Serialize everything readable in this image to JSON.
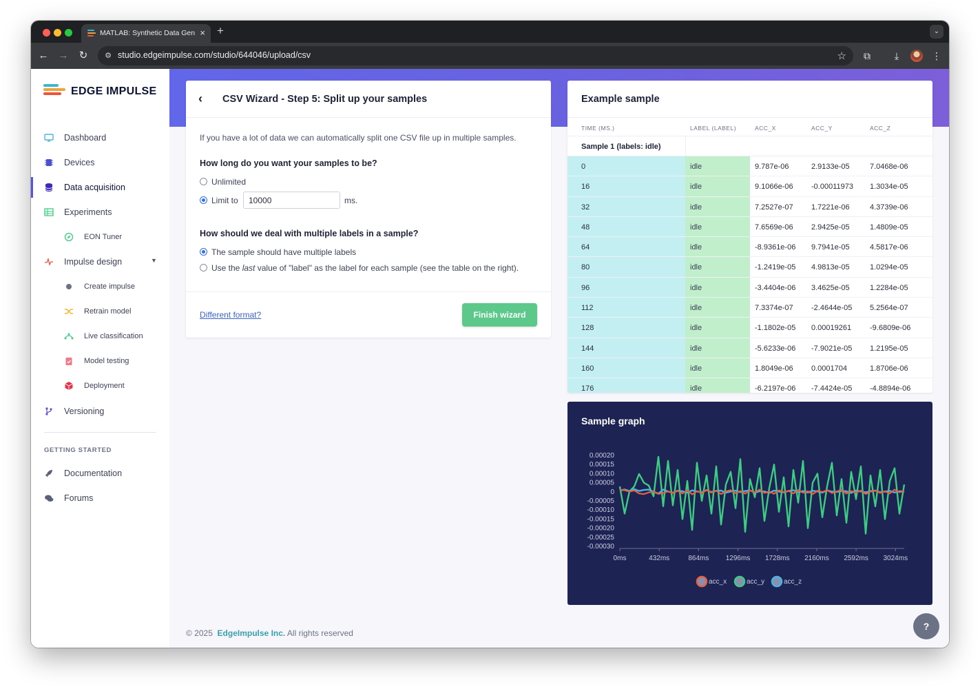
{
  "browser": {
    "tab_title": "MATLAB: Synthetic Data Gen",
    "url": "studio.edgeimpulse.com/studio/644046/upload/csv"
  },
  "colors": {
    "accent": "#5a55d6",
    "banner": "#6266e8",
    "finish_button": "#5cc98a",
    "time_column": "#c3eef2",
    "label_column": "#c1efcc",
    "graph_background": "#1d2453",
    "acc_x": "#e8613c",
    "acc_y": "#3ecb82",
    "acc_z": "#49b3e6"
  },
  "logo": {
    "text": "EDGE IMPULSE"
  },
  "sidebar": {
    "items": [
      {
        "label": "Dashboard",
        "icon": "monitor-icon"
      },
      {
        "label": "Devices",
        "icon": "chip-icon"
      },
      {
        "label": "Data acquisition",
        "icon": "database-icon",
        "active": true
      },
      {
        "label": "Experiments",
        "icon": "table-icon"
      },
      {
        "label": "EON Tuner",
        "icon": "compass-icon"
      },
      {
        "label": "Impulse design",
        "icon": "pulse-icon"
      },
      {
        "label": "Create impulse",
        "icon": "dot-icon"
      },
      {
        "label": "Retrain model",
        "icon": "shuffle-icon"
      },
      {
        "label": "Live classification",
        "icon": "live-icon"
      },
      {
        "label": "Model testing",
        "icon": "clipboard-check-icon"
      },
      {
        "label": "Deployment",
        "icon": "cube-icon"
      },
      {
        "label": "Versioning",
        "icon": "branch-icon"
      }
    ],
    "section_heading": "GETTING STARTED",
    "getting_started": [
      {
        "label": "Documentation",
        "icon": "rocket-icon"
      },
      {
        "label": "Forums",
        "icon": "chat-icon"
      }
    ]
  },
  "wizard": {
    "title": "CSV Wizard - Step 5: Split up your samples",
    "intro": "If you have a lot of data we can automatically split one CSV file up in multiple samples.",
    "q1": "How long do you want your samples to be?",
    "opt_unlimited": "Unlimited",
    "opt_limit": "Limit to",
    "limit_value": "10000",
    "limit_unit": "ms.",
    "q2": "How should we deal with multiple labels in a sample?",
    "opt_multi": "The sample should have multiple labels",
    "opt_last_pre": "Use the ",
    "opt_last_em": "last",
    "opt_last_post": " value of \"label\" as the label for each sample (see the table on the right).",
    "different_format": "Different format?",
    "finish": "Finish wizard"
  },
  "example": {
    "title": "Example sample",
    "columns": [
      "TIME (MS.)",
      "LABEL (LABEL)",
      "ACC_X",
      "ACC_Y",
      "ACC_Z"
    ],
    "sample_label": "Sample 1 (labels: idle)",
    "rows": [
      [
        "0",
        "idle",
        "9.787e-06",
        "2.9133e-05",
        "7.0468e-06"
      ],
      [
        "16",
        "idle",
        "9.1066e-06",
        "-0.00011973",
        "1.3034e-05"
      ],
      [
        "32",
        "idle",
        "7.2527e-07",
        "1.7221e-06",
        "4.3739e-06"
      ],
      [
        "48",
        "idle",
        "7.6569e-06",
        "2.9425e-05",
        "1.4809e-05"
      ],
      [
        "64",
        "idle",
        "-8.9361e-06",
        "9.7941e-05",
        "4.5817e-06"
      ],
      [
        "80",
        "idle",
        "-1.2419e-05",
        "4.9813e-05",
        "1.0294e-05"
      ],
      [
        "96",
        "idle",
        "-3.4404e-06",
        "3.4625e-05",
        "1.2284e-05"
      ],
      [
        "112",
        "idle",
        "7.3374e-07",
        "-2.4644e-05",
        "5.2564e-07"
      ],
      [
        "128",
        "idle",
        "-1.1802e-05",
        "0.00019261",
        "-9.6809e-06"
      ],
      [
        "144",
        "idle",
        "-5.6233e-06",
        "-7.9021e-05",
        "1.2195e-05"
      ],
      [
        "160",
        "idle",
        "1.8049e-06",
        "0.0001704",
        "1.8706e-06"
      ],
      [
        "176",
        "idle",
        "-6.2197e-06",
        "-7.4424e-05",
        "-4.8894e-06"
      ]
    ]
  },
  "graph": {
    "title": "Sample graph"
  },
  "chart_data": {
    "type": "line",
    "title": "Sample graph",
    "y_ticks": [
      "0.00020",
      "0.00015",
      "0.00010",
      "0.00005",
      "0",
      "-0.00005",
      "-0.00010",
      "-0.00015",
      "-0.00020",
      "-0.00025",
      "-0.00030"
    ],
    "x_ticks": [
      "0ms",
      "432ms",
      "864ms",
      "1296ms",
      "1728ms",
      "2160ms",
      "2592ms",
      "3024ms"
    ],
    "ylim": [
      -0.0003,
      0.0002
    ],
    "xlim": [
      0,
      3120
    ],
    "legend": "bottom-center",
    "series": [
      {
        "name": "acc_x",
        "color": "#e8613c",
        "values": [
          9.787e-06,
          9.1066e-06,
          7.2527e-07,
          7.6569e-06,
          -8.9361e-06,
          -1.2419e-05,
          -3.4404e-06,
          7.3374e-07,
          -1.1802e-05,
          -5.6233e-06,
          1.8049e-06,
          -6.2197e-06,
          5e-06,
          -9e-06,
          8e-06,
          -1.4e-05,
          3e-06,
          -7e-06,
          1.1e-05,
          -4e-06,
          6e-06,
          -1.2e-05,
          2e-06,
          9e-06,
          -8e-06,
          4e-06,
          -1e-05,
          7e-06,
          -3e-06,
          1.2e-05,
          -6e-06,
          1e-06,
          -1.1e-05,
          8e-06,
          -2e-06,
          5e-06,
          -9e-06,
          1e-05,
          -5e-06,
          3e-06,
          -1.3e-05,
          6e-06,
          -1e-06,
          9e-06,
          -7e-06,
          2e-06,
          1.1e-05,
          -1e-05,
          4e-06,
          -4e-06,
          7e-06,
          -1.2e-05,
          1e-06,
          8e-06,
          -6e-06,
          3e-06,
          -9e-06,
          1.2e-05,
          -3e-06,
          5e-06
        ]
      },
      {
        "name": "acc_y",
        "color": "#3ecb82",
        "values": [
          2.9133e-05,
          -0.00011973,
          1.7221e-06,
          2.9425e-05,
          9.7941e-05,
          4.9813e-05,
          3.4625e-05,
          -2.4644e-05,
          0.00019261,
          -7.9021e-05,
          0.0001704,
          -7.4424e-05,
          0.00012,
          -0.00015,
          6e-05,
          -0.00021,
          0.00016,
          -5e-05,
          9e-05,
          -0.00012,
          0.00014,
          -0.00018,
          4e-05,
          0.00011,
          -9e-05,
          0.00018,
          -0.00022,
          7e-05,
          -3e-05,
          0.00013,
          -0.00016,
          2e-05,
          0.00015,
          -0.00011,
          8e-05,
          -0.00019,
          0.00012,
          -6e-05,
          0.00017,
          -0.0002,
          5e-05,
          0.0001,
          -0.00014,
          3e-05,
          0.00016,
          -0.00013,
          7e-05,
          -0.00017,
          0.00011,
          -4e-05,
          0.00014,
          -0.00023,
          9e-05,
          -8e-05,
          0.00012,
          -0.00015,
          6e-05,
          0.00013,
          -0.00012,
          4e-05
        ]
      },
      {
        "name": "acc_z",
        "color": "#49b3e6",
        "values": [
          7.0468e-06,
          1.3034e-05,
          4.3739e-06,
          1.4809e-05,
          4.5817e-06,
          1.0294e-05,
          1.2284e-05,
          5.2564e-07,
          -9.6809e-06,
          1.2195e-05,
          1.8706e-06,
          -4.8894e-06,
          6e-06,
          3e-06,
          -5e-06,
          8e-06,
          2e-06,
          -3e-06,
          9e-06,
          -1e-06,
          5e-06,
          7e-06,
          -4e-06,
          1e-06,
          6e-06,
          -2e-06,
          4e-06,
          8e-06,
          -5e-06,
          3e-06,
          2e-06,
          -6e-06,
          7e-06,
          1e-06,
          -3e-06,
          5e-06,
          9e-06,
          -2e-06,
          4e-06,
          -4e-06,
          6e-06,
          2e-06,
          -5e-06,
          8e-06,
          1e-06,
          -1e-06,
          5e-06,
          3e-06,
          -6e-06,
          7e-06,
          2e-06,
          -3e-06,
          4e-06,
          6e-06,
          -2e-06,
          1e-06,
          5e-06,
          -4e-06,
          3e-06,
          2e-06
        ]
      }
    ]
  },
  "footer": {
    "copyright": "© 2025",
    "company": "EdgeImpulse Inc.",
    "rights": "All rights reserved"
  },
  "help": {
    "label": "?"
  }
}
